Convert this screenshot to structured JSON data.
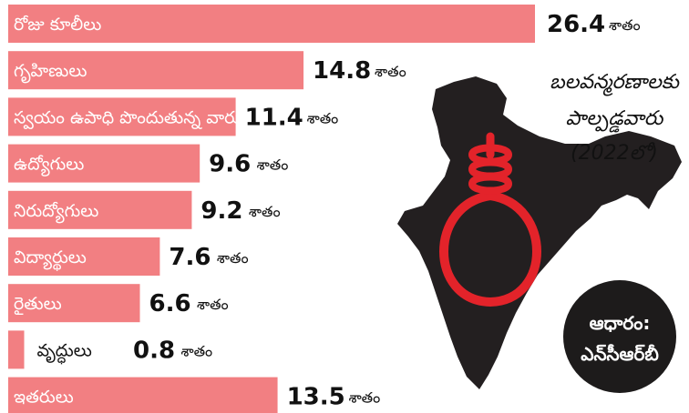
{
  "chart_data": {
    "type": "bar",
    "orientation": "horizontal",
    "categories": [
      "రోజు కూలీలు",
      "గృహిణులు",
      "స్వయం ఉపాధి పొందుతున్న వారు",
      "ఉద్యోగులు",
      "నిరుద్యోగులు",
      "విద్యార్థులు",
      "రైతులు",
      "వృద్ధులు",
      "ఇతరులు"
    ],
    "values": [
      26.4,
      14.8,
      11.4,
      9.6,
      9.2,
      7.6,
      6.6,
      0.8,
      13.5
    ],
    "value_labels": [
      "26.4",
      "14.8",
      "11.4",
      "9.6",
      "9.2",
      "7.6",
      "6.6",
      "0.8",
      "13.5"
    ],
    "unit": "శాతం",
    "title_lines": [
      "బలవన్మరణాలకు",
      "పాల్పడ్డవారు",
      "(2022లో)"
    ],
    "source_lines": [
      "ఆధారం:",
      "ఎన్‌సీఆర్‌బీ"
    ],
    "xlim": [
      0,
      26.4
    ],
    "grid": false,
    "legend": "none"
  },
  "colors": {
    "bar": "#f27f82",
    "map": "#231f20",
    "noose": "#e3232a",
    "source_bg": "#1d1b1b"
  }
}
